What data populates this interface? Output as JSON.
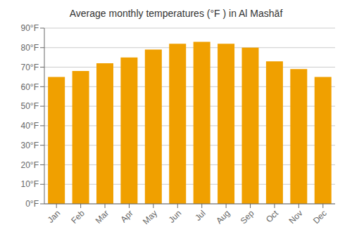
{
  "chart_data": {
    "type": "bar",
    "title": "Average monthly temperatures (°F ) in Al Mashāf",
    "categories": [
      "Jan",
      "Feb",
      "Mar",
      "Apr",
      "May",
      "Jun",
      "Jul",
      "Aug",
      "Sep",
      "Oct",
      "Nov",
      "Dec"
    ],
    "values": [
      65,
      68,
      72,
      75,
      79,
      82,
      83,
      82,
      80,
      73,
      69,
      65
    ],
    "color": "#F0A000",
    "ylim": [
      0,
      90
    ],
    "yticks": [
      {
        "value": 0,
        "label": "0°F"
      },
      {
        "value": 10,
        "label": "10°F"
      },
      {
        "value": 20,
        "label": "20°F"
      },
      {
        "value": 30,
        "label": "30°F"
      },
      {
        "value": 40,
        "label": "40°F"
      },
      {
        "value": 50,
        "label": "50°F"
      },
      {
        "value": 60,
        "label": "60°F"
      },
      {
        "value": 70,
        "label": "70°F"
      },
      {
        "value": 80,
        "label": "80°F"
      },
      {
        "value": 90,
        "label": "90°F"
      }
    ],
    "grid": true
  }
}
